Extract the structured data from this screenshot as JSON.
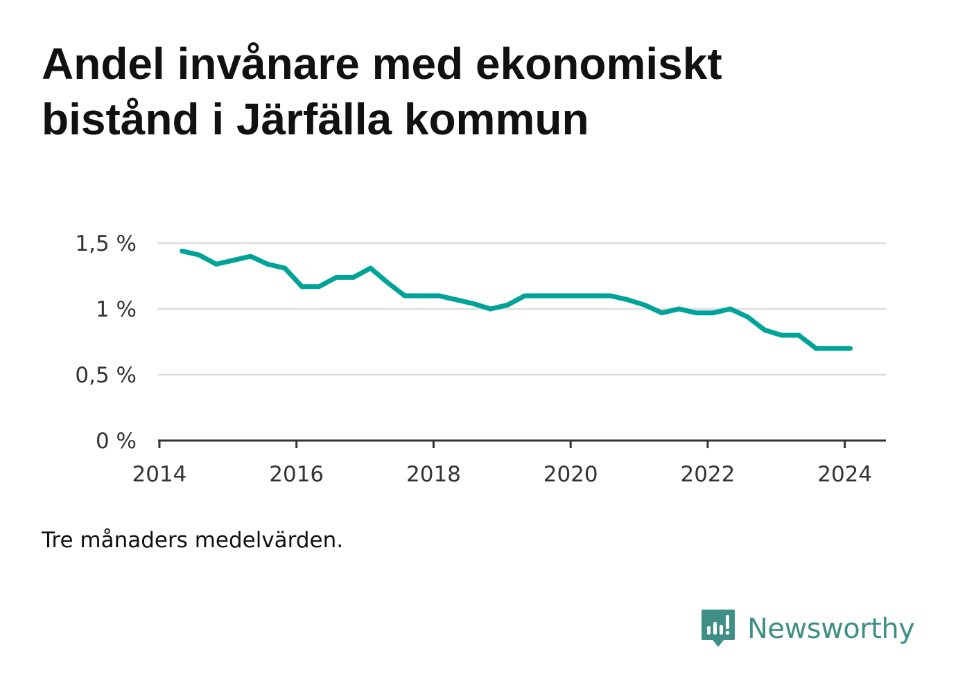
{
  "title": "Andel invånare med ekonomiskt bistånd i Järfälla kommun",
  "note": "Tre månaders medelvärden.",
  "brand": {
    "name": "Newsworthy",
    "icon": "newsworthy-logo-icon",
    "color": "#3f8f87"
  },
  "colors": {
    "line": "#00a397",
    "grid": "#dddddd",
    "axis": "#333333",
    "text": "#333333"
  },
  "chart_data": {
    "type": "line",
    "title": "Andel invånare med ekonomiskt bistånd i Järfälla kommun",
    "xlabel": "",
    "ylabel": "",
    "grid": true,
    "legend": "none",
    "xlim": [
      2013.98,
      2024.6
    ],
    "ylim": [
      0,
      1.5
    ],
    "xticks": [
      2014,
      2016,
      2018,
      2020,
      2022,
      2024
    ],
    "xtick_labels": [
      "2014",
      "2016",
      "2018",
      "2020",
      "2022",
      "2024"
    ],
    "yticks": [
      0,
      0.5,
      1,
      1.5
    ],
    "ytick_labels": [
      "0 %",
      "0,5 %",
      "1 %",
      "1,5 %"
    ],
    "series": [
      {
        "x": [
          2014.33,
          2014.58,
          2014.83,
          2015.08,
          2015.33,
          2015.58,
          2015.83,
          2016.08,
          2016.33,
          2016.58,
          2016.83,
          2017.08,
          2017.33,
          2017.58,
          2017.83,
          2018.08,
          2018.33,
          2018.58,
          2018.83,
          2019.08,
          2019.33,
          2019.58,
          2019.83,
          2020.08,
          2020.33,
          2020.58,
          2020.83,
          2021.08,
          2021.33,
          2021.58,
          2021.83,
          2022.08,
          2022.33,
          2022.58,
          2022.83,
          2023.08,
          2023.33,
          2023.58,
          2023.83,
          2024.08
        ],
        "values": [
          1.44,
          1.41,
          1.34,
          1.37,
          1.4,
          1.34,
          1.31,
          1.17,
          1.17,
          1.24,
          1.24,
          1.31,
          1.2,
          1.1,
          1.1,
          1.1,
          1.07,
          1.04,
          1.0,
          1.03,
          1.1,
          1.1,
          1.1,
          1.1,
          1.1,
          1.1,
          1.07,
          1.03,
          0.97,
          1.0,
          0.97,
          0.97,
          1.0,
          0.94,
          0.84,
          0.8,
          0.8,
          0.7,
          0.7,
          0.7
        ]
      }
    ]
  }
}
